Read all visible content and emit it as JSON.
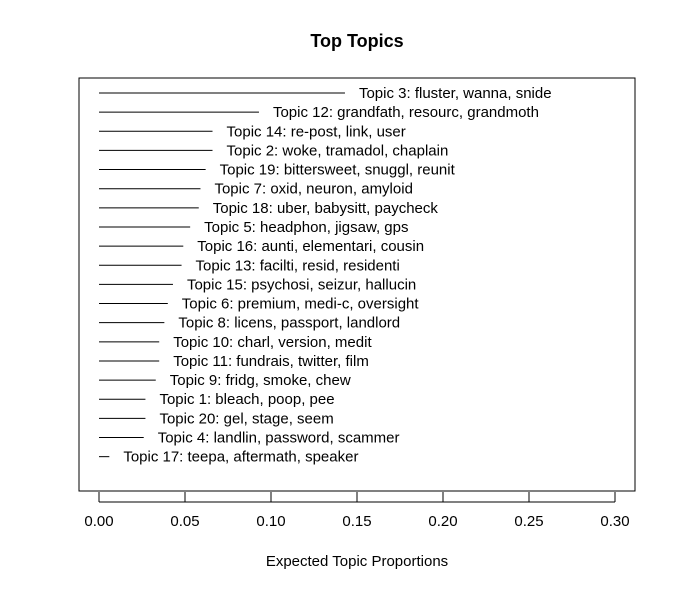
{
  "chart_data": {
    "type": "bar",
    "orientation": "horizontal",
    "title": "Top Topics",
    "xlabel": "Expected Topic Proportions",
    "xlim": [
      0.0,
      0.3
    ],
    "x_ticks": [
      "0.00",
      "0.05",
      "0.10",
      "0.15",
      "0.20",
      "0.25",
      "0.30"
    ],
    "grid": false,
    "legend": "none",
    "bar_color": "#000000",
    "topics": [
      {
        "label": "Topic 3: fluster, wanna, snide",
        "value": 0.143
      },
      {
        "label": "Topic 12: grandfath, resourc, grandmoth",
        "value": 0.093
      },
      {
        "label": "Topic 14: re-post, link, user",
        "value": 0.066
      },
      {
        "label": "Topic 2: woke, tramadol, chaplain",
        "value": 0.066
      },
      {
        "label": "Topic 19: bittersweet, snuggl, reunit",
        "value": 0.062
      },
      {
        "label": "Topic 7: oxid, neuron, amyloid",
        "value": 0.059
      },
      {
        "label": "Topic 18: uber, babysitt, paycheck",
        "value": 0.058
      },
      {
        "label": "Topic 5: headphon, jigsaw, gps",
        "value": 0.053
      },
      {
        "label": "Topic 16: aunti, elementari, cousin",
        "value": 0.049
      },
      {
        "label": "Topic 13: facilti, resid, residenti",
        "value": 0.048
      },
      {
        "label": "Topic 15: psychosi, seizur, hallucin",
        "value": 0.043
      },
      {
        "label": "Topic 6: premium, medi-c, oversight",
        "value": 0.04
      },
      {
        "label": "Topic 8: licens, passport, landlord",
        "value": 0.038
      },
      {
        "label": "Topic 10: charl, version, medit",
        "value": 0.035
      },
      {
        "label": "Topic 11: fundrais, twitter, film",
        "value": 0.035
      },
      {
        "label": "Topic 9: fridg, smoke, chew",
        "value": 0.033
      },
      {
        "label": "Topic 1: bleach, poop, pee",
        "value": 0.027
      },
      {
        "label": "Topic 20: gel, stage, seem",
        "value": 0.027
      },
      {
        "label": "Topic 4: landlin, password, scammer",
        "value": 0.026
      },
      {
        "label": "Topic 17: teepa, aftermath, speaker",
        "value": 0.006
      }
    ]
  }
}
